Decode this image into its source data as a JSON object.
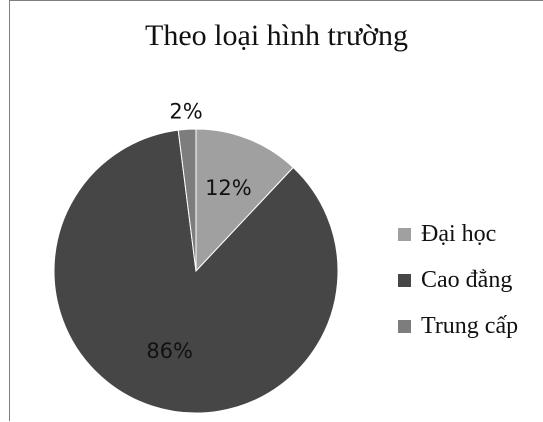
{
  "chart_data": {
    "type": "pie",
    "title": "Theo loại hình trường",
    "categories": [
      "Đại học",
      "Cao đẳng",
      "Trung cấp"
    ],
    "values": [
      12,
      86,
      2
    ],
    "data_labels": [
      "12%",
      "86%",
      "2%"
    ],
    "colors": [
      "#a0a0a0",
      "#464646",
      "#7d7d7d"
    ],
    "start_angle_deg": 0,
    "direction": "clockwise",
    "legend_position": "right"
  }
}
